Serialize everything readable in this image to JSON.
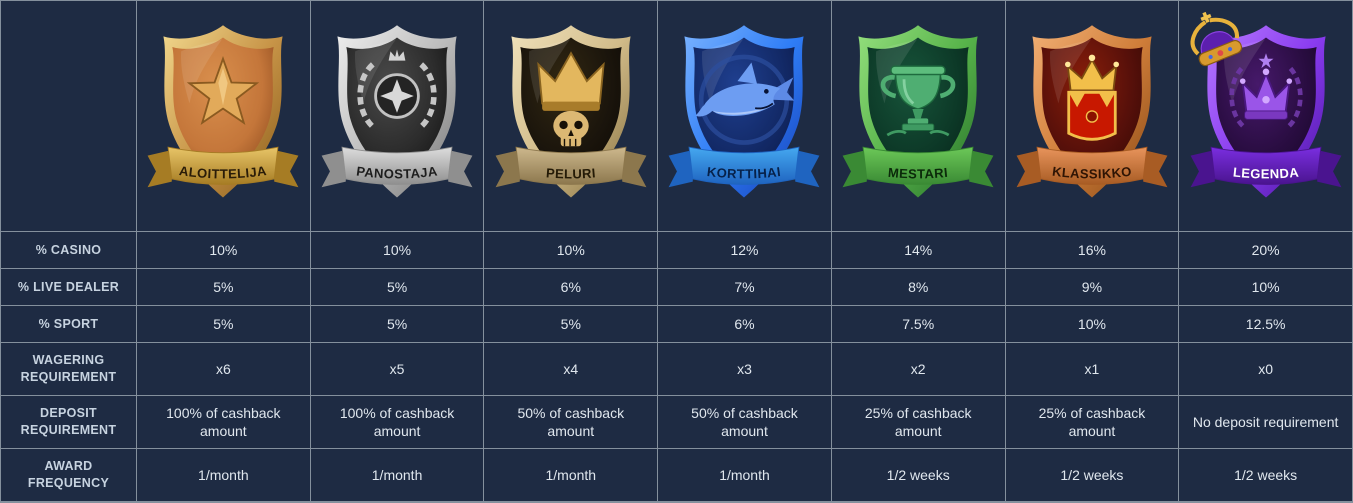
{
  "colors": {
    "background": "#1e2b43",
    "grid_line": "#84909d",
    "label_text": "#c7d3e0",
    "value_text": "#e0e7ee"
  },
  "tiers": [
    {
      "name": "ALOITTELIJA",
      "slug": "aloittelija",
      "emblem": "star-icon",
      "theme": {
        "border_light": "#f2d98e",
        "border": "#c89548",
        "border_dark": "#8a5c1a",
        "inner_light": "#d98f4d",
        "inner": "#c4763a",
        "inner_dark": "#7e3f16",
        "ribbon": "#e8c568",
        "ribbon_dark": "#a67c24",
        "ribbon_text": "#2a1c08"
      }
    },
    {
      "name": "PANOSTAJA",
      "slug": "panostaja",
      "emblem": "laurel-wreath-icon",
      "theme": {
        "border_light": "#efefef",
        "border": "#bcbcbc",
        "border_dark": "#767676",
        "inner_light": "#4a4a4a",
        "inner": "#2c2c2c",
        "inner_dark": "#0c0c0c",
        "ribbon": "#dddddd",
        "ribbon_dark": "#8f8f8f",
        "ribbon_text": "#1d1d1d"
      }
    },
    {
      "name": "PELURI",
      "slug": "peluri",
      "emblem": "skull-crown-icon",
      "theme": {
        "border_light": "#f0e2bc",
        "border": "#d2bc8a",
        "border_dark": "#86703f",
        "inner_light": "#322812",
        "inner": "#1b150c",
        "inner_dark": "#0a0704",
        "ribbon": "#cdb88d",
        "ribbon_dark": "#8c774d",
        "ribbon_text": "#241a06"
      }
    },
    {
      "name": "KORTTIHAI",
      "slug": "korttihai",
      "emblem": "shark-icon",
      "theme": {
        "border_light": "#7ab3ff",
        "border": "#2f7df6",
        "border_dark": "#1640b8",
        "inner_light": "#1f3f8f",
        "inner": "#132a68",
        "inner_dark": "#0a1744",
        "ribbon": "#45a8f0",
        "ribbon_dark": "#1f64c0",
        "ribbon_text": "#06214a"
      }
    },
    {
      "name": "MESTARI",
      "slug": "mestari",
      "emblem": "trophy-icon",
      "theme": {
        "border_light": "#95e07e",
        "border": "#57b34a",
        "border_dark": "#27702a",
        "inner_light": "#17543a",
        "inner": "#0d3a28",
        "inner_dark": "#062117",
        "ribbon": "#6cc858",
        "ribbon_dark": "#3a8a34",
        "ribbon_text": "#0b2a0a"
      }
    },
    {
      "name": "KLASSIKKO",
      "slug": "klassikko",
      "emblem": "crown-crest-icon",
      "theme": {
        "border_light": "#f2b075",
        "border": "#d07e3a",
        "border_dark": "#8a4a16",
        "inner_light": "#8a1e0a",
        "inner": "#57100a",
        "inner_dark": "#2e0804",
        "ribbon": "#e8945c",
        "ribbon_dark": "#a85c24",
        "ribbon_text": "#2e1404"
      }
    },
    {
      "name": "LEGENDA",
      "slug": "legenda",
      "emblem": "crown-icon",
      "has_crown": true,
      "theme": {
        "border_light": "#b87cff",
        "border": "#8a3cf0",
        "border_dark": "#4a14a0",
        "inner_light": "#46196a",
        "inner": "#2a0d42",
        "inner_dark": "#140524",
        "ribbon": "#7a2ee0",
        "ribbon_dark": "#4a148f",
        "ribbon_text": "#ffffff"
      }
    }
  ],
  "table": {
    "rows": [
      {
        "label": "% CASINO",
        "values": [
          "10%",
          "10%",
          "10%",
          "12%",
          "14%",
          "16%",
          "20%"
        ]
      },
      {
        "label": "% LIVE DEALER",
        "values": [
          "5%",
          "5%",
          "6%",
          "7%",
          "8%",
          "9%",
          "10%"
        ]
      },
      {
        "label": "% SPORT",
        "values": [
          "5%",
          "5%",
          "5%",
          "6%",
          "7.5%",
          "10%",
          "12.5%"
        ]
      },
      {
        "label": "WAGERING REQUIREMENT",
        "values": [
          "x6",
          "x5",
          "x4",
          "x3",
          "x2",
          "x1",
          "x0"
        ]
      },
      {
        "label": "DEPOSIT REQUIREMENT",
        "values": [
          "100% of cashback amount",
          "100% of cashback amount",
          "50% of cashback amount",
          "50% of cashback amount",
          "25% of cashback amount",
          "25% of cashback amount",
          "No deposit requirement"
        ]
      },
      {
        "label": "AWARD FREQUENCY",
        "values": [
          "1/month",
          "1/month",
          "1/month",
          "1/month",
          "1/2 weeks",
          "1/2 weeks",
          "1/2 weeks"
        ]
      }
    ]
  }
}
